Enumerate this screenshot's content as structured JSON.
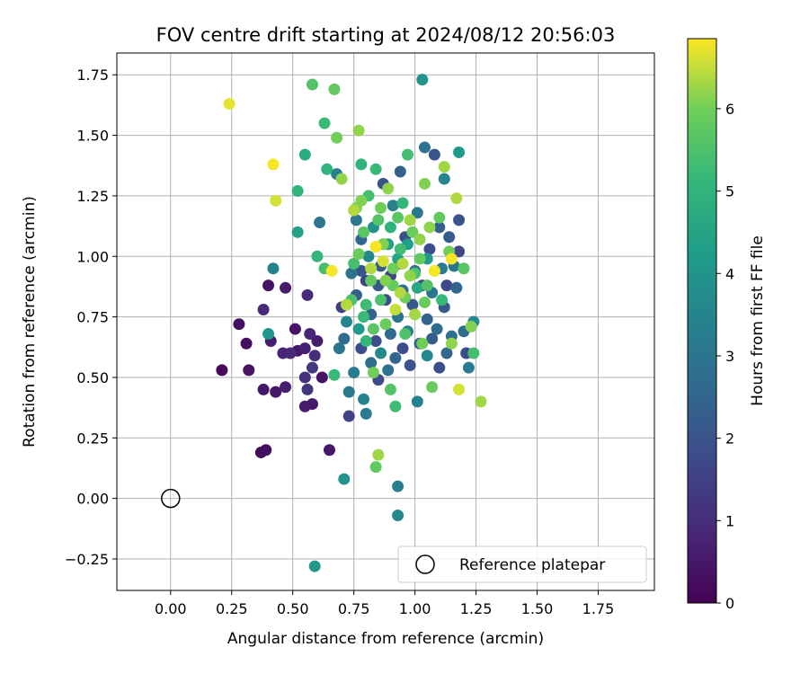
{
  "chart_data": {
    "type": "scatter",
    "title": "FOV centre drift starting at 2024/08/12 20:56:03",
    "xlabel": "Angular distance from reference (arcmin)",
    "ylabel": "Rotation from reference (arcmin)",
    "xlim": [
      -0.22,
      1.98
    ],
    "ylim": [
      -0.38,
      1.84
    ],
    "x_ticks": [
      0.0,
      0.25,
      0.5,
      0.75,
      1.0,
      1.25,
      1.5,
      1.75
    ],
    "x_tick_labels": [
      "0.00",
      "0.25",
      "0.50",
      "0.75",
      "1.00",
      "1.25",
      "1.50",
      "1.75"
    ],
    "y_ticks": [
      -0.25,
      0.0,
      0.25,
      0.5,
      0.75,
      1.0,
      1.25,
      1.5,
      1.75
    ],
    "y_tick_labels": [
      "−0.25",
      "0.00",
      "0.25",
      "0.50",
      "0.75",
      "1.00",
      "1.25",
      "1.50",
      "1.75"
    ],
    "grid": true,
    "colormap": "viridis",
    "colorbar": {
      "label": "Hours from first FF file",
      "range": [
        0,
        6.85
      ],
      "ticks": [
        0,
        1,
        2,
        3,
        4,
        5,
        6
      ],
      "tick_labels": [
        "0",
        "1",
        "2",
        "3",
        "4",
        "5",
        "6"
      ]
    },
    "legend": {
      "position": "lower-right",
      "label": "Reference platepar"
    },
    "reference_point": {
      "x": 0.0,
      "y": 0.0
    },
    "points": [
      {
        "x": 0.21,
        "y": 0.53,
        "h": 0.2
      },
      {
        "x": 0.28,
        "y": 0.72,
        "h": 0.3
      },
      {
        "x": 0.32,
        "y": 0.53,
        "h": 0.4
      },
      {
        "x": 0.31,
        "y": 0.64,
        "h": 0.3
      },
      {
        "x": 0.37,
        "y": 0.19,
        "h": 0.2
      },
      {
        "x": 0.39,
        "y": 0.2,
        "h": 0.3
      },
      {
        "x": 0.38,
        "y": 0.45,
        "h": 0.5
      },
      {
        "x": 0.38,
        "y": 0.78,
        "h": 0.9
      },
      {
        "x": 0.4,
        "y": 0.88,
        "h": 0.4
      },
      {
        "x": 0.41,
        "y": 0.65,
        "h": 0.6
      },
      {
        "x": 0.43,
        "y": 0.44,
        "h": 0.5
      },
      {
        "x": 0.46,
        "y": 0.6,
        "h": 0.8
      },
      {
        "x": 0.47,
        "y": 0.46,
        "h": 0.7
      },
      {
        "x": 0.47,
        "y": 0.87,
        "h": 0.6
      },
      {
        "x": 0.49,
        "y": 0.6,
        "h": 0.9
      },
      {
        "x": 0.51,
        "y": 0.7,
        "h": 0.4
      },
      {
        "x": 0.52,
        "y": 0.61,
        "h": 0.5
      },
      {
        "x": 0.55,
        "y": 0.38,
        "h": 0.6
      },
      {
        "x": 0.55,
        "y": 0.62,
        "h": 0.7
      },
      {
        "x": 0.57,
        "y": 0.68,
        "h": 0.8
      },
      {
        "x": 0.56,
        "y": 0.84,
        "h": 0.9
      },
      {
        "x": 0.58,
        "y": 0.39,
        "h": 0.5
      },
      {
        "x": 0.59,
        "y": 0.59,
        "h": 1.0
      },
      {
        "x": 0.6,
        "y": 0.65,
        "h": 0.6
      },
      {
        "x": 0.62,
        "y": 0.5,
        "h": 0.4
      },
      {
        "x": 0.65,
        "y": 0.2,
        "h": 0.5
      },
      {
        "x": 0.55,
        "y": 0.5,
        "h": 1.1
      },
      {
        "x": 0.56,
        "y": 0.45,
        "h": 1.2
      },
      {
        "x": 0.58,
        "y": 0.54,
        "h": 1.3
      },
      {
        "x": 0.69,
        "y": 0.62,
        "h": 3.0
      },
      {
        "x": 0.71,
        "y": 0.66,
        "h": 2.7
      },
      {
        "x": 0.7,
        "y": 0.79,
        "h": 1.5
      },
      {
        "x": 0.73,
        "y": 0.44,
        "h": 3.1
      },
      {
        "x": 0.73,
        "y": 0.34,
        "h": 1.5
      },
      {
        "x": 0.75,
        "y": 0.52,
        "h": 3.3
      },
      {
        "x": 0.72,
        "y": 0.73,
        "h": 3.5
      },
      {
        "x": 0.74,
        "y": 0.93,
        "h": 2.9
      },
      {
        "x": 0.76,
        "y": 0.84,
        "h": 2.3
      },
      {
        "x": 0.78,
        "y": 0.62,
        "h": 1.8
      },
      {
        "x": 0.77,
        "y": 0.7,
        "h": 4.2
      },
      {
        "x": 0.78,
        "y": 0.94,
        "h": 2.0
      },
      {
        "x": 0.78,
        "y": 1.07,
        "h": 2.5
      },
      {
        "x": 0.79,
        "y": 0.41,
        "h": 3.5
      },
      {
        "x": 0.8,
        "y": 0.35,
        "h": 3.2
      },
      {
        "x": 0.8,
        "y": 0.9,
        "h": 1.6
      },
      {
        "x": 0.81,
        "y": 1.0,
        "h": 3.6
      },
      {
        "x": 0.82,
        "y": 0.56,
        "h": 2.8
      },
      {
        "x": 0.82,
        "y": 0.76,
        "h": 2.4
      },
      {
        "x": 0.83,
        "y": 1.12,
        "h": 3.9
      },
      {
        "x": 0.84,
        "y": 0.65,
        "h": 1.8
      },
      {
        "x": 0.85,
        "y": 0.49,
        "h": 1.7
      },
      {
        "x": 0.85,
        "y": 0.88,
        "h": 2.1
      },
      {
        "x": 0.86,
        "y": 0.6,
        "h": 3.7
      },
      {
        "x": 0.86,
        "y": 0.96,
        "h": 2.2
      },
      {
        "x": 0.87,
        "y": 1.05,
        "h": 2.6
      },
      {
        "x": 0.87,
        "y": 1.3,
        "h": 2.0
      },
      {
        "x": 0.88,
        "y": 0.82,
        "h": 1.9
      },
      {
        "x": 0.89,
        "y": 0.53,
        "h": 2.9
      },
      {
        "x": 0.9,
        "y": 0.68,
        "h": 2.7
      },
      {
        "x": 0.9,
        "y": 0.92,
        "h": 1.6
      },
      {
        "x": 0.91,
        "y": 1.21,
        "h": 3.4
      },
      {
        "x": 0.92,
        "y": 0.58,
        "h": 2.5
      },
      {
        "x": 0.93,
        "y": 0.75,
        "h": 3.0
      },
      {
        "x": 0.94,
        "y": 0.97,
        "h": 2.3
      },
      {
        "x": 0.94,
        "y": 1.35,
        "h": 2.4
      },
      {
        "x": 0.95,
        "y": 0.62,
        "h": 1.8
      },
      {
        "x": 0.95,
        "y": 0.86,
        "h": 2.6
      },
      {
        "x": 0.96,
        "y": 1.08,
        "h": 1.9
      },
      {
        "x": 0.97,
        "y": 0.69,
        "h": 3.3
      },
      {
        "x": 0.98,
        "y": 0.55,
        "h": 2.0
      },
      {
        "x": 0.99,
        "y": 0.8,
        "h": 2.1
      },
      {
        "x": 1.0,
        "y": 0.94,
        "h": 2.8
      },
      {
        "x": 1.01,
        "y": 0.4,
        "h": 3.4
      },
      {
        "x": 1.01,
        "y": 1.18,
        "h": 3.1
      },
      {
        "x": 1.02,
        "y": 0.64,
        "h": 2.2
      },
      {
        "x": 1.03,
        "y": 0.88,
        "h": 1.7
      },
      {
        "x": 1.04,
        "y": 1.45,
        "h": 2.9
      },
      {
        "x": 1.05,
        "y": 0.59,
        "h": 3.6
      },
      {
        "x": 1.05,
        "y": 0.74,
        "h": 2.5
      },
      {
        "x": 1.06,
        "y": 1.03,
        "h": 1.8
      },
      {
        "x": 1.07,
        "y": 0.66,
        "h": 2.3
      },
      {
        "x": 1.07,
        "y": 0.85,
        "h": 3.0
      },
      {
        "x": 1.08,
        "y": 1.42,
        "h": 2.0
      },
      {
        "x": 1.09,
        "y": 0.7,
        "h": 2.7
      },
      {
        "x": 1.1,
        "y": 0.54,
        "h": 1.9
      },
      {
        "x": 1.1,
        "y": 1.12,
        "h": 2.4
      },
      {
        "x": 1.11,
        "y": 0.95,
        "h": 3.2
      },
      {
        "x": 1.12,
        "y": 0.79,
        "h": 2.1
      },
      {
        "x": 1.12,
        "y": 1.32,
        "h": 3.5
      },
      {
        "x": 1.13,
        "y": 0.6,
        "h": 2.6
      },
      {
        "x": 1.13,
        "y": 0.88,
        "h": 1.7
      },
      {
        "x": 1.14,
        "y": 1.08,
        "h": 2.2
      },
      {
        "x": 1.15,
        "y": 0.67,
        "h": 2.8
      },
      {
        "x": 1.16,
        "y": 0.96,
        "h": 3.1
      },
      {
        "x": 1.17,
        "y": 0.87,
        "h": 2.5
      },
      {
        "x": 1.18,
        "y": 1.02,
        "h": 1.6
      },
      {
        "x": 1.18,
        "y": 1.15,
        "h": 2.0
      },
      {
        "x": 1.2,
        "y": 0.69,
        "h": 2.7
      },
      {
        "x": 1.21,
        "y": 0.6,
        "h": 1.8
      },
      {
        "x": 1.22,
        "y": 0.54,
        "h": 3.2
      },
      {
        "x": 1.24,
        "y": 0.73,
        "h": 3.6
      },
      {
        "x": 1.18,
        "y": 1.43,
        "h": 4.2
      },
      {
        "x": 1.03,
        "y": 1.73,
        "h": 4.0
      },
      {
        "x": 0.93,
        "y": 0.05,
        "h": 3.3
      },
      {
        "x": 0.93,
        "y": -0.07,
        "h": 3.6
      },
      {
        "x": 0.59,
        "y": -0.28,
        "h": 4.1
      },
      {
        "x": 0.71,
        "y": 0.08,
        "h": 4.0
      },
      {
        "x": 0.76,
        "y": 1.15,
        "h": 3.1
      },
      {
        "x": 0.68,
        "y": 1.34,
        "h": 3.3
      },
      {
        "x": 0.61,
        "y": 1.14,
        "h": 3.0
      },
      {
        "x": 0.4,
        "y": 0.68,
        "h": 4.1
      },
      {
        "x": 0.42,
        "y": 0.95,
        "h": 3.4
      },
      {
        "x": 0.67,
        "y": 0.51,
        "h": 5.2
      },
      {
        "x": 0.55,
        "y": 1.42,
        "h": 4.8
      },
      {
        "x": 0.52,
        "y": 1.1,
        "h": 4.4
      },
      {
        "x": 0.52,
        "y": 1.27,
        "h": 5.0
      },
      {
        "x": 0.58,
        "y": 1.71,
        "h": 5.6
      },
      {
        "x": 0.63,
        "y": 1.55,
        "h": 5.2
      },
      {
        "x": 0.64,
        "y": 1.36,
        "h": 5.0
      },
      {
        "x": 0.67,
        "y": 1.69,
        "h": 5.8
      },
      {
        "x": 0.68,
        "y": 1.49,
        "h": 6.0
      },
      {
        "x": 0.7,
        "y": 1.32,
        "h": 6.2
      },
      {
        "x": 0.6,
        "y": 1.0,
        "h": 5.1
      },
      {
        "x": 0.63,
        "y": 0.95,
        "h": 5.4
      },
      {
        "x": 0.72,
        "y": 0.8,
        "h": 6.4
      },
      {
        "x": 0.75,
        "y": 0.97,
        "h": 5.4
      },
      {
        "x": 0.76,
        "y": 1.2,
        "h": 6.1
      },
      {
        "x": 0.77,
        "y": 1.52,
        "h": 6.2
      },
      {
        "x": 0.78,
        "y": 1.38,
        "h": 5.0
      },
      {
        "x": 0.79,
        "y": 1.1,
        "h": 5.7
      },
      {
        "x": 0.8,
        "y": 0.65,
        "h": 5.1
      },
      {
        "x": 0.81,
        "y": 1.25,
        "h": 5.4
      },
      {
        "x": 0.82,
        "y": 0.9,
        "h": 5.8
      },
      {
        "x": 0.83,
        "y": 0.52,
        "h": 6.0
      },
      {
        "x": 0.84,
        "y": 1.36,
        "h": 5.2
      },
      {
        "x": 0.85,
        "y": 0.18,
        "h": 6.3
      },
      {
        "x": 0.84,
        "y": 0.13,
        "h": 5.8
      },
      {
        "x": 0.86,
        "y": 0.82,
        "h": 5.5
      },
      {
        "x": 0.87,
        "y": 1.05,
        "h": 6.1
      },
      {
        "x": 0.88,
        "y": 0.72,
        "h": 5.9
      },
      {
        "x": 0.89,
        "y": 1.28,
        "h": 6.2
      },
      {
        "x": 0.9,
        "y": 0.45,
        "h": 5.6
      },
      {
        "x": 0.91,
        "y": 0.95,
        "h": 6.0
      },
      {
        "x": 0.92,
        "y": 0.38,
        "h": 5.3
      },
      {
        "x": 0.93,
        "y": 1.16,
        "h": 5.7
      },
      {
        "x": 0.94,
        "y": 0.85,
        "h": 6.4
      },
      {
        "x": 0.95,
        "y": 1.22,
        "h": 5.1
      },
      {
        "x": 0.96,
        "y": 0.68,
        "h": 5.5
      },
      {
        "x": 0.97,
        "y": 1.42,
        "h": 5.4
      },
      {
        "x": 0.98,
        "y": 0.92,
        "h": 6.2
      },
      {
        "x": 0.99,
        "y": 1.1,
        "h": 5.9
      },
      {
        "x": 1.0,
        "y": 0.76,
        "h": 6.3
      },
      {
        "x": 1.02,
        "y": 0.99,
        "h": 5.8
      },
      {
        "x": 1.03,
        "y": 0.64,
        "h": 6.0
      },
      {
        "x": 1.04,
        "y": 1.3,
        "h": 6.1
      },
      {
        "x": 1.05,
        "y": 0.88,
        "h": 5.6
      },
      {
        "x": 1.06,
        "y": 1.12,
        "h": 6.2
      },
      {
        "x": 1.07,
        "y": 0.46,
        "h": 5.9
      },
      {
        "x": 1.08,
        "y": 0.94,
        "h": 6.5
      },
      {
        "x": 1.1,
        "y": 1.16,
        "h": 5.8
      },
      {
        "x": 1.11,
        "y": 0.82,
        "h": 5.2
      },
      {
        "x": 1.12,
        "y": 1.37,
        "h": 6.3
      },
      {
        "x": 1.14,
        "y": 1.02,
        "h": 6.0
      },
      {
        "x": 1.15,
        "y": 0.64,
        "h": 6.2
      },
      {
        "x": 1.17,
        "y": 1.24,
        "h": 6.4
      },
      {
        "x": 1.18,
        "y": 0.45,
        "h": 6.6
      },
      {
        "x": 1.2,
        "y": 0.95,
        "h": 5.7
      },
      {
        "x": 1.23,
        "y": 0.71,
        "h": 6.1
      },
      {
        "x": 1.24,
        "y": 0.6,
        "h": 5.4
      },
      {
        "x": 1.27,
        "y": 0.4,
        "h": 6.3
      },
      {
        "x": 1.15,
        "y": 0.99,
        "h": 6.8
      },
      {
        "x": 1.08,
        "y": 0.94,
        "h": 6.8
      },
      {
        "x": 0.84,
        "y": 1.04,
        "h": 6.8
      },
      {
        "x": 0.66,
        "y": 0.94,
        "h": 6.8
      },
      {
        "x": 0.42,
        "y": 1.38,
        "h": 6.8
      },
      {
        "x": 0.43,
        "y": 1.23,
        "h": 6.6
      },
      {
        "x": 0.24,
        "y": 1.63,
        "h": 6.7
      },
      {
        "x": 0.8,
        "y": 0.8,
        "h": 5.3
      },
      {
        "x": 0.82,
        "y": 0.95,
        "h": 6.4
      },
      {
        "x": 0.85,
        "y": 1.15,
        "h": 5.6
      },
      {
        "x": 0.88,
        "y": 0.9,
        "h": 6.1
      },
      {
        "x": 0.9,
        "y": 1.12,
        "h": 5.0
      },
      {
        "x": 0.92,
        "y": 0.78,
        "h": 6.5
      },
      {
        "x": 0.94,
        "y": 1.03,
        "h": 5.3
      },
      {
        "x": 0.96,
        "y": 0.83,
        "h": 6.0
      },
      {
        "x": 0.98,
        "y": 1.15,
        "h": 6.3
      },
      {
        "x": 1.0,
        "y": 0.93,
        "h": 5.5
      },
      {
        "x": 1.02,
        "y": 1.07,
        "h": 6.2
      },
      {
        "x": 1.04,
        "y": 0.81,
        "h": 5.9
      },
      {
        "x": 0.87,
        "y": 0.98,
        "h": 6.6
      },
      {
        "x": 0.91,
        "y": 0.88,
        "h": 5.8
      },
      {
        "x": 0.95,
        "y": 0.97,
        "h": 6.4
      },
      {
        "x": 0.83,
        "y": 0.7,
        "h": 5.7
      },
      {
        "x": 0.86,
        "y": 1.2,
        "h": 6.0
      },
      {
        "x": 0.93,
        "y": 0.99,
        "h": 4.5
      },
      {
        "x": 0.97,
        "y": 1.05,
        "h": 4.3
      },
      {
        "x": 1.01,
        "y": 0.87,
        "h": 4.6
      },
      {
        "x": 1.05,
        "y": 0.99,
        "h": 4.2
      },
      {
        "x": 0.89,
        "y": 1.05,
        "h": 4.4
      },
      {
        "x": 0.78,
        "y": 1.23,
        "h": 6.1
      },
      {
        "x": 0.77,
        "y": 1.01,
        "h": 5.9
      },
      {
        "x": 0.75,
        "y": 1.19,
        "h": 6.4
      },
      {
        "x": 0.74,
        "y": 0.82,
        "h": 5.5
      },
      {
        "x": 0.79,
        "y": 0.75,
        "h": 5.2
      }
    ]
  }
}
